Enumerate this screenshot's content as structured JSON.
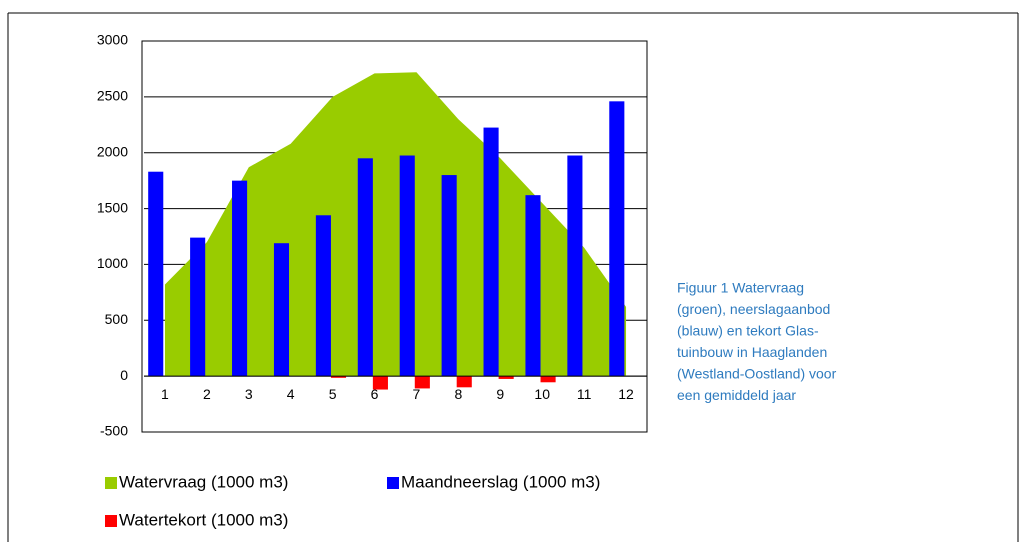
{
  "chart_data": {
    "type": "combo",
    "categories": [
      "1",
      "2",
      "3",
      "4",
      "5",
      "6",
      "7",
      "8",
      "9",
      "10",
      "11",
      "12"
    ],
    "series": [
      {
        "name": "Watervraag (1000 m3)",
        "type": "area",
        "color": "#99cc00",
        "values": [
          820,
          1200,
          1870,
          2080,
          2500,
          2710,
          2720,
          2300,
          1950,
          1550,
          1150,
          620
        ]
      },
      {
        "name": "Maandneerslag (1000 m3)",
        "type": "bar",
        "color": "#0000ff",
        "values": [
          1830,
          1240,
          1750,
          1190,
          1440,
          1950,
          1975,
          1800,
          2225,
          1620,
          1975,
          2460
        ]
      },
      {
        "name": "Watertekort (1000 m3)",
        "type": "bar",
        "color": "#ff0000",
        "values": [
          0,
          0,
          0,
          0,
          -15,
          -120,
          -110,
          -100,
          -25,
          -55,
          0,
          0
        ]
      }
    ],
    "ylim": [
      -500,
      3000
    ],
    "yticks": [
      -500,
      0,
      500,
      1000,
      1500,
      2000,
      2500,
      3000
    ],
    "grid": true,
    "caption": [
      "Figuur 1 Watervraag",
      "(groen), neerslagaanbod",
      "(blauw) en tekort Glas-",
      "tuinbouw in Haaglanden",
      "(Westland-Oostland) voor",
      "een gemiddeld jaar"
    ]
  }
}
